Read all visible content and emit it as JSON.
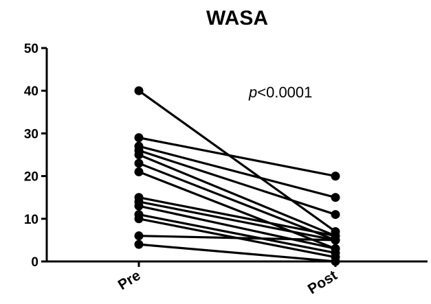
{
  "chart_data": {
    "type": "line",
    "title": "WASA",
    "xlabel": "",
    "ylabel": "",
    "categories": [
      "Pre",
      "Post"
    ],
    "ylim": [
      0,
      50
    ],
    "yticks": [
      0,
      10,
      20,
      30,
      40,
      50
    ],
    "grid": false,
    "legend": "none",
    "annotation": {
      "p_label": "p",
      "rest": "<0.0001"
    },
    "series": [
      {
        "values": [
          40,
          7
        ]
      },
      {
        "values": [
          29,
          20
        ]
      },
      {
        "values": [
          27,
          15
        ]
      },
      {
        "values": [
          26,
          11
        ]
      },
      {
        "values": [
          25,
          6
        ]
      },
      {
        "values": [
          23,
          5
        ]
      },
      {
        "values": [
          21,
          3
        ]
      },
      {
        "values": [
          15,
          6
        ]
      },
      {
        "values": [
          14,
          5
        ]
      },
      {
        "values": [
          13,
          3
        ]
      },
      {
        "values": [
          11,
          2
        ]
      },
      {
        "values": [
          10,
          1
        ]
      },
      {
        "values": [
          6,
          5
        ]
      },
      {
        "values": [
          4,
          0
        ]
      }
    ]
  }
}
